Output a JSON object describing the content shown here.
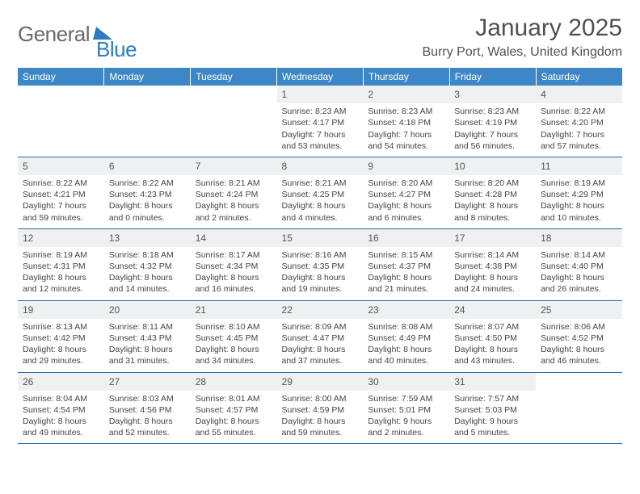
{
  "logo": {
    "general": "General",
    "blue": "Blue"
  },
  "title": "January 2025",
  "location": "Burry Port, Wales, United Kingdom",
  "colors": {
    "header_bg": "#3d87c7",
    "header_text": "#ffffff",
    "daynum_bg": "#eef0f2",
    "border": "#2d6aa0",
    "logo_gray": "#6a6a6a",
    "logo_blue": "#2d7cc0",
    "text": "#444444"
  },
  "fonts": {
    "title_size": 30,
    "location_size": 16,
    "dayhead_size": 12,
    "cell_size": 10.5
  },
  "day_headers": [
    "Sunday",
    "Monday",
    "Tuesday",
    "Wednesday",
    "Thursday",
    "Friday",
    "Saturday"
  ],
  "weeks": [
    [
      null,
      null,
      null,
      {
        "n": "1",
        "sr": "8:23 AM",
        "ss": "4:17 PM",
        "dl": "7 hours and 53 minutes."
      },
      {
        "n": "2",
        "sr": "8:23 AM",
        "ss": "4:18 PM",
        "dl": "7 hours and 54 minutes."
      },
      {
        "n": "3",
        "sr": "8:23 AM",
        "ss": "4:19 PM",
        "dl": "7 hours and 56 minutes."
      },
      {
        "n": "4",
        "sr": "8:22 AM",
        "ss": "4:20 PM",
        "dl": "7 hours and 57 minutes."
      }
    ],
    [
      {
        "n": "5",
        "sr": "8:22 AM",
        "ss": "4:21 PM",
        "dl": "7 hours and 59 minutes."
      },
      {
        "n": "6",
        "sr": "8:22 AM",
        "ss": "4:23 PM",
        "dl": "8 hours and 0 minutes."
      },
      {
        "n": "7",
        "sr": "8:21 AM",
        "ss": "4:24 PM",
        "dl": "8 hours and 2 minutes."
      },
      {
        "n": "8",
        "sr": "8:21 AM",
        "ss": "4:25 PM",
        "dl": "8 hours and 4 minutes."
      },
      {
        "n": "9",
        "sr": "8:20 AM",
        "ss": "4:27 PM",
        "dl": "8 hours and 6 minutes."
      },
      {
        "n": "10",
        "sr": "8:20 AM",
        "ss": "4:28 PM",
        "dl": "8 hours and 8 minutes."
      },
      {
        "n": "11",
        "sr": "8:19 AM",
        "ss": "4:29 PM",
        "dl": "8 hours and 10 minutes."
      }
    ],
    [
      {
        "n": "12",
        "sr": "8:19 AM",
        "ss": "4:31 PM",
        "dl": "8 hours and 12 minutes."
      },
      {
        "n": "13",
        "sr": "8:18 AM",
        "ss": "4:32 PM",
        "dl": "8 hours and 14 minutes."
      },
      {
        "n": "14",
        "sr": "8:17 AM",
        "ss": "4:34 PM",
        "dl": "8 hours and 16 minutes."
      },
      {
        "n": "15",
        "sr": "8:16 AM",
        "ss": "4:35 PM",
        "dl": "8 hours and 19 minutes."
      },
      {
        "n": "16",
        "sr": "8:15 AM",
        "ss": "4:37 PM",
        "dl": "8 hours and 21 minutes."
      },
      {
        "n": "17",
        "sr": "8:14 AM",
        "ss": "4:38 PM",
        "dl": "8 hours and 24 minutes."
      },
      {
        "n": "18",
        "sr": "8:14 AM",
        "ss": "4:40 PM",
        "dl": "8 hours and 26 minutes."
      }
    ],
    [
      {
        "n": "19",
        "sr": "8:13 AM",
        "ss": "4:42 PM",
        "dl": "8 hours and 29 minutes."
      },
      {
        "n": "20",
        "sr": "8:11 AM",
        "ss": "4:43 PM",
        "dl": "8 hours and 31 minutes."
      },
      {
        "n": "21",
        "sr": "8:10 AM",
        "ss": "4:45 PM",
        "dl": "8 hours and 34 minutes."
      },
      {
        "n": "22",
        "sr": "8:09 AM",
        "ss": "4:47 PM",
        "dl": "8 hours and 37 minutes."
      },
      {
        "n": "23",
        "sr": "8:08 AM",
        "ss": "4:49 PM",
        "dl": "8 hours and 40 minutes."
      },
      {
        "n": "24",
        "sr": "8:07 AM",
        "ss": "4:50 PM",
        "dl": "8 hours and 43 minutes."
      },
      {
        "n": "25",
        "sr": "8:06 AM",
        "ss": "4:52 PM",
        "dl": "8 hours and 46 minutes."
      }
    ],
    [
      {
        "n": "26",
        "sr": "8:04 AM",
        "ss": "4:54 PM",
        "dl": "8 hours and 49 minutes."
      },
      {
        "n": "27",
        "sr": "8:03 AM",
        "ss": "4:56 PM",
        "dl": "8 hours and 52 minutes."
      },
      {
        "n": "28",
        "sr": "8:01 AM",
        "ss": "4:57 PM",
        "dl": "8 hours and 55 minutes."
      },
      {
        "n": "29",
        "sr": "8:00 AM",
        "ss": "4:59 PM",
        "dl": "8 hours and 59 minutes."
      },
      {
        "n": "30",
        "sr": "7:59 AM",
        "ss": "5:01 PM",
        "dl": "9 hours and 2 minutes."
      },
      {
        "n": "31",
        "sr": "7:57 AM",
        "ss": "5:03 PM",
        "dl": "9 hours and 5 minutes."
      },
      null
    ]
  ],
  "labels": {
    "sunrise": "Sunrise: ",
    "sunset": "Sunset: ",
    "daylight": "Daylight: "
  }
}
